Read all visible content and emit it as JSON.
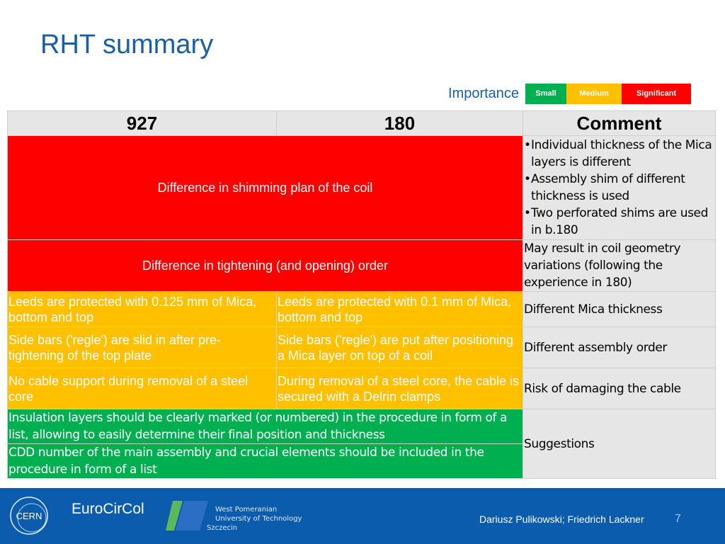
{
  "slide": {
    "title": "RHT summary"
  },
  "importance": {
    "label": "Importance",
    "levels": [
      {
        "label": "Small",
        "color": "#00b050"
      },
      {
        "label": "Medium",
        "color": "#ffc000"
      },
      {
        "label": "Significant",
        "color": "#ff0000"
      }
    ]
  },
  "table": {
    "headers": [
      "927",
      "180",
      "Comment"
    ],
    "rows": [
      {
        "merged_text": "Difference in shimming plan of the coil",
        "importance": "Significant",
        "comment_bullets": [
          "Individual thickness of the Mica layers is different",
          "Assembly shim of different thickness is used",
          "Two perforated shims are used in b.180"
        ]
      },
      {
        "merged_text": "Difference in tightening (and opening) order",
        "importance": "Significant",
        "comment": "May result in coil geometry variations (following the experience in 180)"
      },
      {
        "col927": "Leeds are protected with 0.125 mm of Mica, bottom and top",
        "col180": "Leeds are protected with 0.1 mm of Mica, bottom and top",
        "importance": "Medium",
        "comment": "Different Mica thickness"
      },
      {
        "col927": "Side bars ('regle') are slid in after pre-tightening of the top plate",
        "col180": "Side bars ('regle') are put after positioning a Mica layer on top of a coil",
        "importance": "Medium",
        "comment": "Different assembly order"
      },
      {
        "col927": "No cable support during removal of a steel core",
        "col180": "During removal of a steel core, the cable is secured with a Delrin clamps",
        "importance": "Medium",
        "comment": "Risk of damaging the cable"
      },
      {
        "merged_text": "Insulation layers should be clearly marked (or numbered) in the procedure in form of a list, allowing to easily determine their final position and thickness",
        "importance": "Small"
      },
      {
        "merged_text": "CDD number of the main assembly and crucial elements should be included in the procedure in form of a list",
        "importance": "Small"
      }
    ],
    "suggestions_comment": "Suggestions"
  },
  "footer": {
    "logo_cern": "CERN",
    "logo_eurocircol": "EuroCirCol",
    "logo_wput": [
      "West Pomeranian",
      "University of Technology",
      "Szczecin"
    ],
    "authors": "Dariusz Pulikowski; Friedrich Lackner",
    "page_number": "7"
  }
}
